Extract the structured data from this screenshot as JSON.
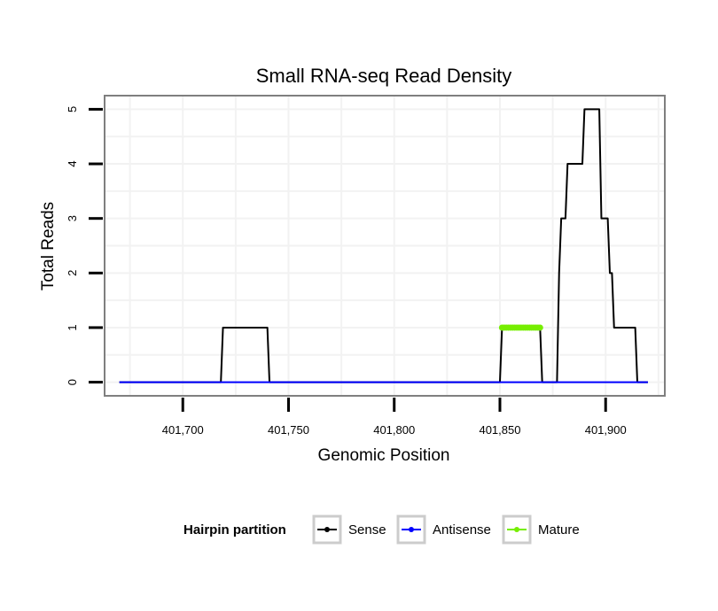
{
  "chart_data": {
    "type": "line",
    "title": "Small RNA-seq Read Density",
    "xlabel": "Genomic Position",
    "ylabel": "Total Reads",
    "xlim": [
      401663,
      401928
    ],
    "ylim": [
      -0.25,
      5.25
    ],
    "x_ticks": [
      401700,
      401750,
      401800,
      401850,
      401900
    ],
    "x_tick_labels": [
      "401,700",
      "401,750",
      "401,800",
      "401,850",
      "401,900"
    ],
    "y_ticks": [
      0,
      1,
      2,
      3,
      4,
      5
    ],
    "y_tick_labels": [
      "0",
      "1",
      "2",
      "3",
      "4",
      "5"
    ],
    "grid": true,
    "legend": {
      "title": "Hairpin partition",
      "position": "bottom",
      "entries": [
        "Sense",
        "Antisense",
        "Mature"
      ]
    },
    "series": [
      {
        "name": "Sense",
        "color": "#000000",
        "x": [
          401670,
          401718,
          401719,
          401740,
          401741,
          401850,
          401851,
          401869,
          401870,
          401877,
          401878,
          401879,
          401881,
          401882,
          401888,
          401889,
          401890,
          401897,
          401898,
          401901,
          401902,
          401903,
          401904,
          401906,
          401907,
          401914,
          401915,
          401920
        ],
        "values": [
          0,
          0,
          1,
          1,
          0,
          0,
          1,
          1,
          0,
          0,
          2,
          3,
          3,
          4,
          4,
          4,
          5,
          5,
          3,
          3,
          2,
          2,
          1,
          1,
          1,
          1,
          0,
          0
        ]
      },
      {
        "name": "Antisense",
        "color": "#0000ff",
        "x": [
          401670,
          401920
        ],
        "values": [
          0,
          0
        ]
      },
      {
        "name": "Mature",
        "color": "#76ee00",
        "x": [
          401851,
          401852,
          401853,
          401854,
          401855,
          401856,
          401857,
          401858,
          401859,
          401860,
          401861,
          401862,
          401863,
          401864,
          401865,
          401866,
          401867,
          401868,
          401869
        ],
        "values": [
          1,
          1,
          1,
          1,
          1,
          1,
          1,
          1,
          1,
          1,
          1,
          1,
          1,
          1,
          1,
          1,
          1,
          1,
          1
        ]
      }
    ]
  }
}
